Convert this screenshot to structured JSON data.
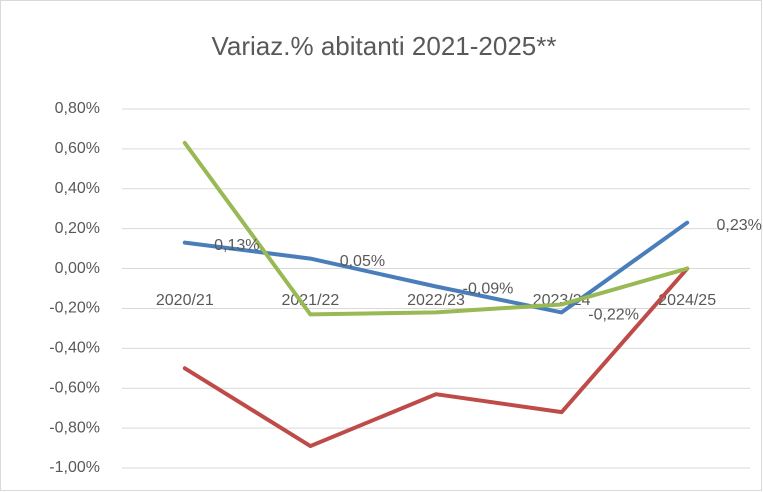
{
  "chart_data": {
    "type": "line",
    "title": "Variaz.% abitanti 2021-2025**",
    "categories": [
      "2020/21",
      "2021/22",
      "2022/23",
      "2023/24",
      "2024/25"
    ],
    "series": [
      {
        "color": "#4a7ebb",
        "values": [
          0.13,
          0.05,
          -0.09,
          -0.22,
          0.23
        ],
        "value_labels": [
          "0,13%",
          "0,05%",
          "-0,09%",
          "-0,22%",
          "0,23%"
        ]
      },
      {
        "color": "#be4b48",
        "values": [
          -0.5,
          -0.89,
          -0.63,
          -0.72,
          0.0
        ]
      },
      {
        "color": "#98b954",
        "values": [
          0.63,
          -0.23,
          -0.22,
          -0.18,
          0.0
        ]
      }
    ],
    "ylim": [
      -1.0,
      0.8
    ],
    "yticks": [
      {
        "value": -1.0,
        "label": "-1,00%"
      },
      {
        "value": -0.8,
        "label": "-0,80%"
      },
      {
        "value": -0.6,
        "label": "-0,60%"
      },
      {
        "value": -0.4,
        "label": "-0,40%"
      },
      {
        "value": -0.2,
        "label": "-0,20%"
      },
      {
        "value": 0.0,
        "label": "0,00%"
      },
      {
        "value": 0.2,
        "label": "0,20%"
      },
      {
        "value": 0.4,
        "label": "0,40%"
      },
      {
        "value": 0.6,
        "label": "0,60%"
      },
      {
        "value": 0.8,
        "label": "0,80%"
      }
    ],
    "grid": true
  }
}
